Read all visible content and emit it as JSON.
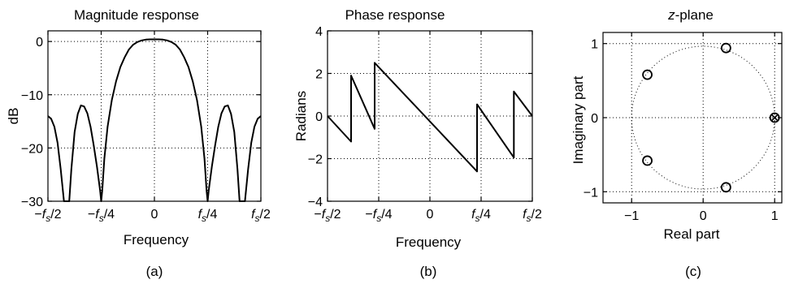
{
  "chart_data": [
    {
      "type": "line",
      "title": "Magnitude response",
      "xlabel": "Frequency",
      "ylabel": "dB",
      "caption": "(a)",
      "grid": true,
      "xlim": [
        -0.5,
        0.5
      ],
      "ylim": [
        -30,
        2
      ],
      "xticks": [
        {
          "value": -0.5,
          "base": "−f",
          "sub": "s",
          "suffix": "/2"
        },
        {
          "value": -0.25,
          "base": "−f",
          "sub": "s",
          "suffix": "/4"
        },
        {
          "value": 0,
          "base": "0",
          "sub": "",
          "suffix": ""
        },
        {
          "value": 0.25,
          "base": "f",
          "sub": "s",
          "suffix": "/4"
        },
        {
          "value": 0.5,
          "base": "f",
          "sub": "s",
          "suffix": "/2"
        }
      ],
      "yticks": [
        {
          "value": 0,
          "label": "0"
        },
        {
          "value": -10,
          "label": "−10"
        },
        {
          "value": -20,
          "label": "−20"
        },
        {
          "value": -30,
          "label": "−30"
        }
      ],
      "x": [
        -0.5,
        -0.485,
        -0.47,
        -0.455,
        -0.44,
        -0.425,
        -0.4,
        -0.39,
        -0.375,
        -0.36,
        -0.345,
        -0.33,
        -0.315,
        -0.3,
        -0.285,
        -0.27,
        -0.255,
        -0.25,
        -0.245,
        -0.235,
        -0.22,
        -0.2,
        -0.18,
        -0.16,
        -0.14,
        -0.12,
        -0.1,
        -0.08,
        -0.06,
        -0.04,
        -0.02,
        0,
        0.02,
        0.04,
        0.06,
        0.08,
        0.1,
        0.12,
        0.14,
        0.16,
        0.18,
        0.2,
        0.22,
        0.235,
        0.245,
        0.25,
        0.255,
        0.27,
        0.285,
        0.3,
        0.315,
        0.33,
        0.345,
        0.36,
        0.375,
        0.39,
        0.4,
        0.425,
        0.44,
        0.455,
        0.47,
        0.485,
        0.5
      ],
      "y": [
        -14,
        -14.5,
        -16,
        -19,
        -24,
        -30,
        -30,
        -24,
        -17,
        -13.6,
        -12,
        -12.2,
        -13.5,
        -16,
        -19.5,
        -23.5,
        -28,
        -30,
        -28,
        -22,
        -16,
        -11,
        -7.5,
        -4.8,
        -3,
        -1.5,
        -0.6,
        -0.1,
        0.2,
        0.35,
        0.4,
        0.4,
        0.4,
        0.35,
        0.2,
        -0.1,
        -0.6,
        -1.5,
        -3,
        -4.8,
        -7.5,
        -11,
        -16,
        -22,
        -28,
        -30,
        -28,
        -23.5,
        -19.5,
        -16,
        -13.5,
        -12.2,
        -12,
        -13.6,
        -17,
        -24,
        -30,
        -30,
        -24,
        -19,
        -16,
        -14.5,
        -14
      ]
    },
    {
      "type": "line",
      "title": "Phase response",
      "xlabel": "Frequency",
      "ylabel": "Radians",
      "caption": "(b)",
      "grid": true,
      "xlim": [
        -0.5,
        0.5
      ],
      "ylim": [
        -4,
        4
      ],
      "xticks": [
        {
          "value": -0.5,
          "base": "−f",
          "sub": "s",
          "suffix": "/2"
        },
        {
          "value": -0.25,
          "base": "−f",
          "sub": "s",
          "suffix": "/4"
        },
        {
          "value": 0,
          "base": "0",
          "sub": "",
          "suffix": ""
        },
        {
          "value": 0.25,
          "base": "f",
          "sub": "s",
          "suffix": "/4"
        },
        {
          "value": 0.5,
          "base": "f",
          "sub": "s",
          "suffix": "/2"
        }
      ],
      "yticks": [
        {
          "value": 4,
          "label": "4"
        },
        {
          "value": 2,
          "label": "2"
        },
        {
          "value": 0,
          "label": "0"
        },
        {
          "value": -2,
          "label": "−2"
        },
        {
          "value": -4,
          "label": "−4"
        }
      ],
      "x": [
        -0.5,
        -0.385,
        -0.385,
        -0.27,
        -0.27,
        0.23,
        0.23,
        0.41,
        0.41,
        0.5
      ],
      "y": [
        0,
        -1.2,
        1.9,
        -0.6,
        2.5,
        -2.6,
        0.55,
        -1.95,
        1.15,
        0
      ]
    },
    {
      "type": "scatter",
      "title_prefix": "z",
      "title_rest": "-plane",
      "xlabel": "Real part",
      "ylabel": "Imaginary part",
      "caption": "(c)",
      "xlim": [
        -1.4,
        1.1
      ],
      "ylim": [
        -1.15,
        1.15
      ],
      "xticks": [
        {
          "value": -1,
          "label": "−1"
        },
        {
          "value": 0,
          "label": "0"
        },
        {
          "value": 1,
          "label": "1"
        }
      ],
      "yticks": [
        {
          "value": 1,
          "label": "1"
        },
        {
          "value": 0,
          "label": "0"
        },
        {
          "value": -1,
          "label": "−1"
        }
      ],
      "unit_circle": true,
      "zeros": [
        {
          "re": 0.32,
          "im": 0.94
        },
        {
          "re": -0.78,
          "im": 0.58
        },
        {
          "re": -0.78,
          "im": -0.58
        },
        {
          "re": 0.32,
          "im": -0.94
        },
        {
          "re": 1.0,
          "im": 0.0
        }
      ],
      "poles": [
        {
          "re": 1.0,
          "im": 0.0
        }
      ]
    }
  ]
}
